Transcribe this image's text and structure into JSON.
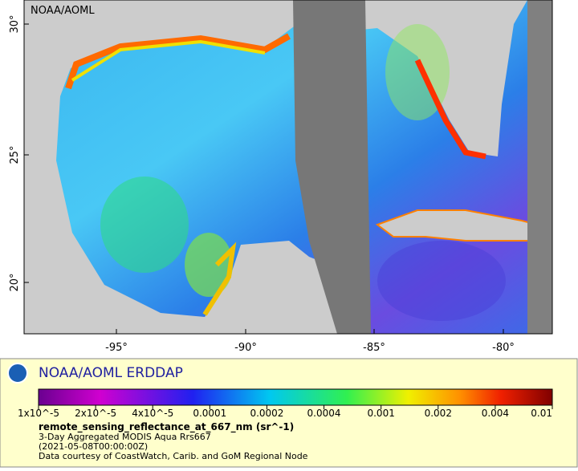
{
  "map": {
    "label": "NOAA/AOML",
    "lat_ticks": [
      "30°",
      "25°",
      "20°"
    ],
    "lon_ticks": [
      "-95°",
      "-90°",
      "-85°",
      "-80°"
    ]
  },
  "legend": {
    "title": "NOAA/AOML ERDDAP",
    "colorbar_ticks": [
      "1x10^-5",
      "2x10^-5",
      "4x10^-5",
      "0.0001",
      "0.0002",
      "0.0004",
      "0.001",
      "0.002",
      "0.004",
      "0.01"
    ],
    "variable": "remote_sensing_reflectance_at_667_nm (sr^-1)",
    "lines": [
      "3-Day Aggregated MODIS Aqua Rrs667",
      "(2021-05-08T00:00:00Z)",
      "Data courtesy of CoastWatch, Carib. and GoM Regional Node"
    ]
  }
}
